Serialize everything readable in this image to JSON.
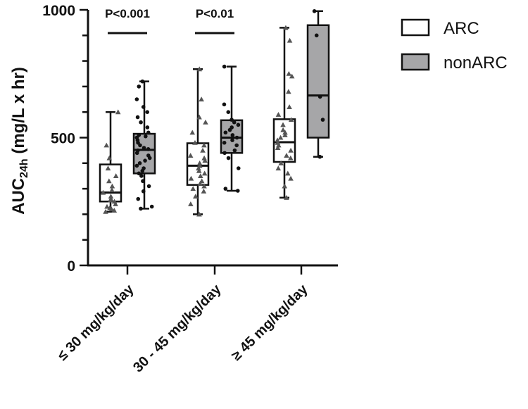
{
  "chart_data": {
    "type": "box",
    "y_axis": {
      "label_main": "AUC",
      "label_sub": "24h",
      "label_tail": " (mg/L x hr)",
      "ylim": [
        0,
        1000
      ],
      "ticks": [
        0,
        500,
        1000
      ],
      "tick_labels": [
        "0",
        "500",
        "1000"
      ]
    },
    "categories": [
      "≤ 30 mg/kg/day",
      "30 - 45 mg/kg/day",
      "≥ 45 mg/kg/day"
    ],
    "legend": {
      "position": "top-right"
    },
    "series": [
      {
        "name": "ARC",
        "color": "#ffffff",
        "marker": "triangle",
        "boxes": [
          {
            "min": 210,
            "q1": 250,
            "median": 285,
            "q3": 395,
            "max": 600,
            "points": [
              210,
              215,
              220,
              225,
              230,
              240,
              250,
              255,
              260,
              270,
              285,
              295,
              310,
              330,
              350,
              380,
              420,
              470,
              600
            ]
          },
          {
            "min": 200,
            "q1": 315,
            "median": 390,
            "q3": 478,
            "max": 768,
            "points": [
              200,
              240,
              270,
              290,
              300,
              310,
              320,
              330,
              340,
              350,
              360,
              370,
              380,
              390,
              400,
              410,
              420,
              430,
              450,
              470,
              480,
              520,
              560,
              580,
              650,
              768
            ]
          },
          {
            "min": 265,
            "q1": 405,
            "median": 482,
            "q3": 572,
            "max": 930,
            "points": [
              265,
              310,
              340,
              360,
              380,
              400,
              420,
              430,
              450,
              460,
              470,
              480,
              490,
              500,
              510,
              520,
              530,
              550,
              570,
              590,
              620,
              680,
              740,
              750,
              880,
              930
            ]
          }
        ]
      },
      {
        "name": "nonARC",
        "color": "#a6a6a8",
        "marker": "dot",
        "boxes": [
          {
            "min": 222,
            "q1": 360,
            "median": 452,
            "q3": 515,
            "max": 720,
            "points": [
              222,
              230,
              260,
              290,
              310,
              330,
              350,
              360,
              370,
              380,
              390,
              400,
              410,
              420,
              430,
              440,
              450,
              455,
              460,
              470,
              480,
              490,
              500,
              505,
              510,
              520,
              540,
              560,
              580,
              600,
              620,
              650,
              700,
              720
            ]
          },
          {
            "min": 292,
            "q1": 440,
            "median": 500,
            "q3": 568,
            "max": 778,
            "points": [
              292,
              300,
              380,
              420,
              440,
              450,
              470,
              480,
              490,
              500,
              510,
              520,
              530,
              540,
              550,
              560,
              570,
              600,
              630,
              778
            ]
          },
          {
            "min": 425,
            "q1": 500,
            "median": 665,
            "q3": 940,
            "max": 995,
            "points": [
              425,
              570,
              660,
              900,
              995
            ]
          }
        ]
      }
    ],
    "annotations": [
      {
        "text": "P<0.001",
        "category_index": 0
      },
      {
        "text": "P<0.01",
        "category_index": 1
      }
    ]
  }
}
